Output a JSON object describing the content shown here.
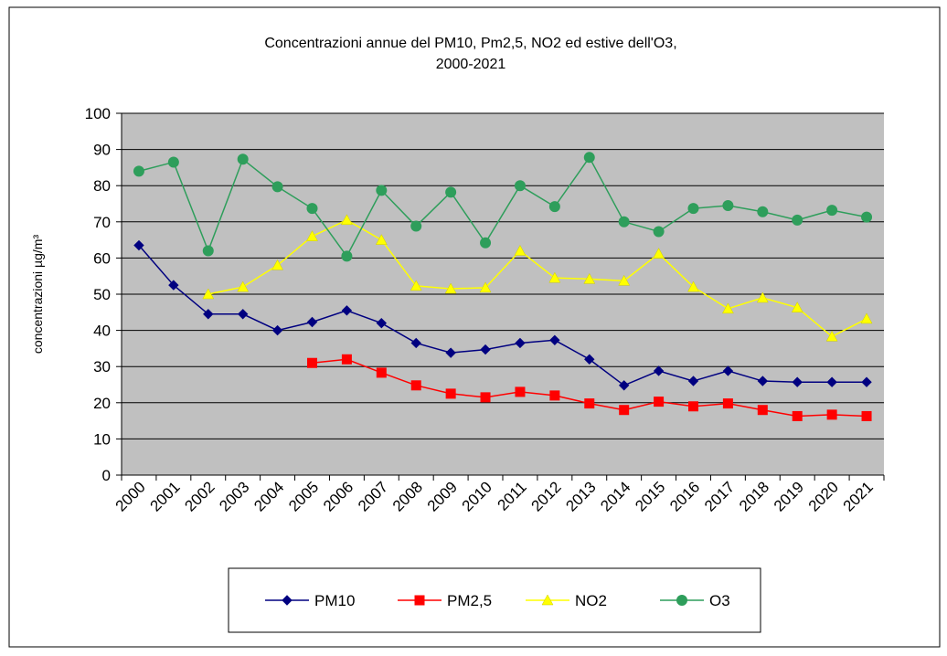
{
  "chart_data": {
    "type": "line",
    "title": [
      "Concentrazioni annue del PM10, Pm2,5, NO2 ed estive dell'O3,",
      "2000-2021"
    ],
    "y_label": "concentrazioni µg/m³",
    "categories": [
      "2000",
      "2001",
      "2002",
      "2003",
      "2004",
      "2005",
      "2006",
      "2007",
      "2008",
      "2009",
      "2010",
      "2011",
      "2012",
      "2013",
      "2014",
      "2015",
      "2016",
      "2017",
      "2018",
      "2019",
      "2020",
      "2021"
    ],
    "ylim": [
      0,
      100
    ],
    "yticks": [
      0,
      10,
      20,
      30,
      40,
      50,
      60,
      70,
      80,
      90,
      100
    ],
    "grid": true,
    "plot_background": "#c0c0c0",
    "legend": "bottom",
    "series": [
      {
        "name": "PM10",
        "color": "#000080",
        "marker": "diamond",
        "values": [
          63.5,
          52.5,
          44.5,
          44.5,
          40,
          42.3,
          45.5,
          42,
          36.5,
          33.8,
          34.7,
          36.5,
          37.3,
          32,
          24.8,
          28.8,
          26,
          28.8,
          26,
          25.7,
          25.7,
          25.7
        ]
      },
      {
        "name": "PM2,5",
        "color": "#ff0000",
        "marker": "square",
        "values": [
          null,
          null,
          null,
          null,
          null,
          31,
          32,
          28.3,
          24.8,
          22.5,
          21.5,
          23,
          22,
          19.8,
          18,
          20.3,
          19,
          19.8,
          18,
          16.3,
          16.7,
          16.3
        ]
      },
      {
        "name": "NO2",
        "color": "#ffff00",
        "marker": "triangle",
        "values": [
          null,
          null,
          50,
          52,
          58,
          66,
          70.5,
          65,
          52.3,
          51.5,
          51.8,
          62,
          54.5,
          54.2,
          53.7,
          61.2,
          52,
          46,
          49,
          46.3,
          38.3,
          43.2
        ]
      },
      {
        "name": "O3",
        "color": "#2e9e5b",
        "marker": "circle",
        "values": [
          84,
          86.5,
          62,
          87.3,
          79.7,
          73.7,
          60.5,
          78.7,
          68.8,
          78.2,
          64.2,
          80,
          74.2,
          87.8,
          70,
          67.3,
          73.7,
          74.5,
          72.8,
          70.5,
          73.2,
          71.3
        ]
      }
    ]
  }
}
